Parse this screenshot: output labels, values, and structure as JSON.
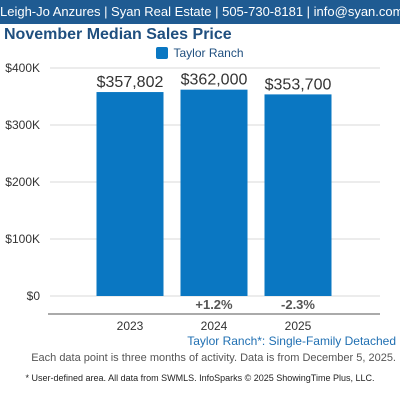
{
  "header": {
    "text": "Leigh-Jo Anzures | Syan Real Estate | 505-730-8181 | info@syan.com"
  },
  "colors": {
    "header_bg": "#1f5b92",
    "bar": "#0a77c2",
    "title": "#1f4f7f",
    "subtitle": "#1f6fb2"
  },
  "chart_data": {
    "type": "bar",
    "title": "November Median Sales Price",
    "categories": [
      "2023",
      "2024",
      "2025"
    ],
    "series": [
      {
        "name": "Taylor Ranch",
        "values": [
          357802,
          362000,
          353700
        ]
      }
    ],
    "data_labels": [
      "$357,802",
      "$362,000",
      "$353,700"
    ],
    "changes": [
      "",
      "+1.2%",
      "-2.3%"
    ],
    "y_ticks": [
      0,
      100000,
      200000,
      300000,
      400000
    ],
    "y_tick_labels": [
      "$0",
      "$100K",
      "$200K",
      "$300K",
      "$400K"
    ],
    "ylim": [
      0,
      400000
    ],
    "grid": true,
    "legend_position": "top"
  },
  "subtitle": "Taylor Ranch*: Single-Family Detached",
  "note": "Each data point is three months of activity. Data is from December 5, 2025.",
  "footer": "* User-defined area. All data from SWMLS. InfoSparks © 2025 ShowingTime Plus, LLC."
}
